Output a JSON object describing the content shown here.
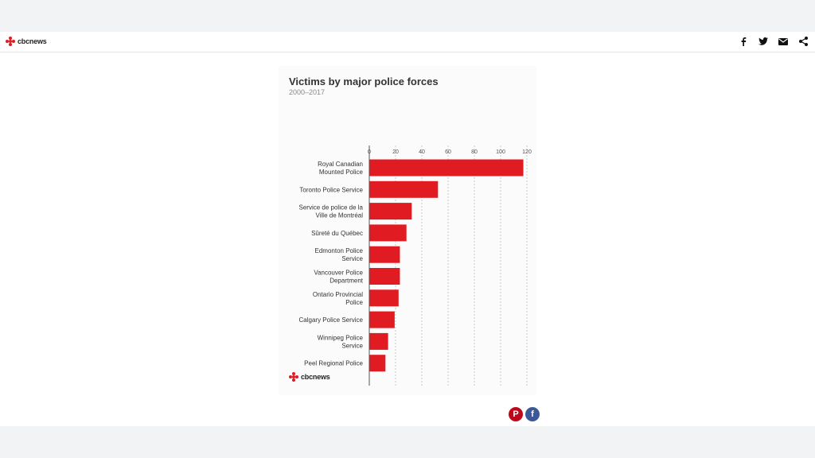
{
  "header": {
    "brand": "cbcnews",
    "share": [
      {
        "name": "facebook",
        "glyph": "f"
      },
      {
        "name": "twitter",
        "glyph": "t"
      },
      {
        "name": "email",
        "glyph": "m"
      },
      {
        "name": "share",
        "glyph": "s"
      }
    ]
  },
  "card": {
    "brand": "cbcnews"
  },
  "footer": {
    "pinterest_glyph": "P",
    "facebook_glyph": "f"
  },
  "colors": {
    "bar": "#e11b22",
    "brand_red": "#e11b22",
    "pinterest": "#bd081c",
    "facebook": "#3b5998"
  },
  "chart_data": {
    "type": "bar",
    "orientation": "horizontal",
    "title": "Victims by major police forces",
    "subtitle": "2000–2017",
    "xlim": [
      0,
      120
    ],
    "ticks": [
      0,
      20,
      40,
      60,
      80,
      100,
      120
    ],
    "categories": [
      [
        "Royal Canadian",
        "Mounted Police"
      ],
      [
        "Toronto Police Service"
      ],
      [
        "Service de police de la",
        "Ville de Montréal"
      ],
      [
        "Sûreté du Québec"
      ],
      [
        "Edmonton Police",
        "Service"
      ],
      [
        "Vancouver Police",
        "Department"
      ],
      [
        "Ontario Provincial",
        "Police"
      ],
      [
        "Calgary Police Service"
      ],
      [
        "Winnipeg Police",
        "Service"
      ],
      [
        "Peel Regional Police"
      ]
    ],
    "values": [
      117,
      52,
      32,
      28,
      23,
      23,
      22,
      19,
      14,
      12
    ],
    "grid": true
  }
}
